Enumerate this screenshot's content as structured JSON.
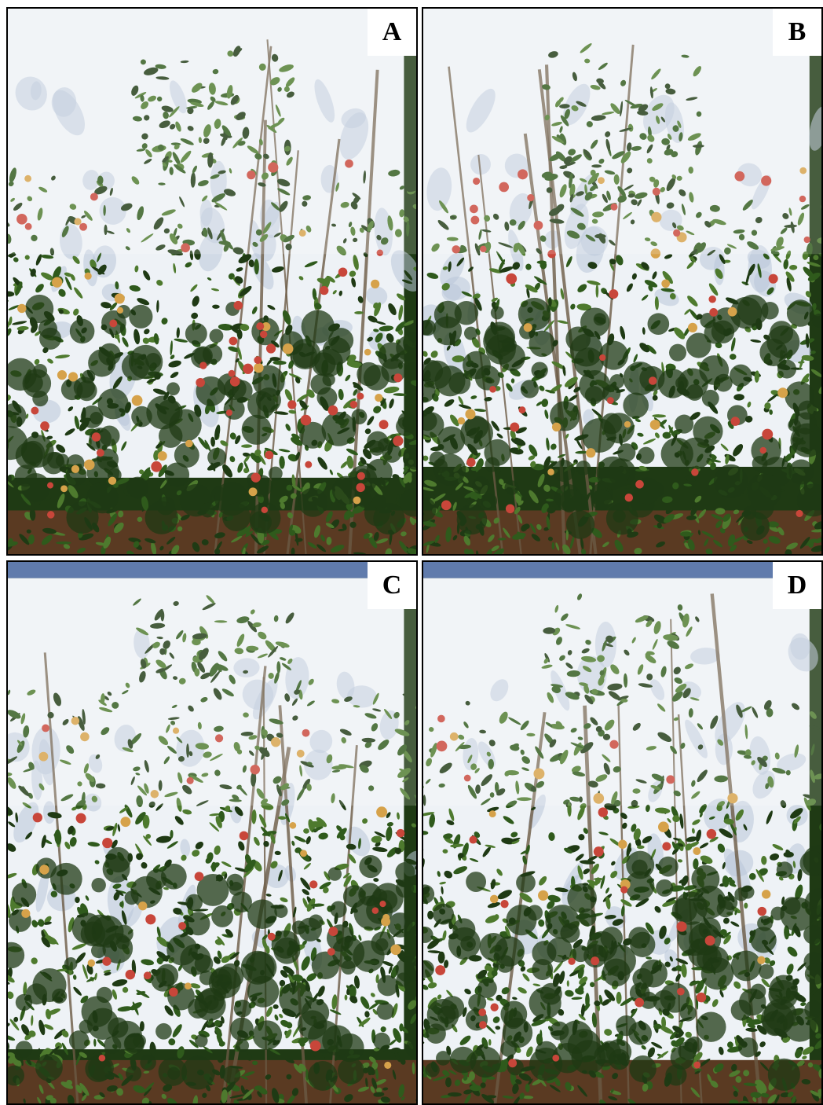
{
  "panels": [
    {
      "id": "a",
      "label": "A"
    },
    {
      "id": "b",
      "label": "B"
    },
    {
      "id": "c",
      "label": "C"
    },
    {
      "id": "d",
      "label": "D"
    }
  ],
  "colors": {
    "sheet": "#eef2f6",
    "sheet_shadow": "#b9c6d8",
    "sky": "#3d5f9a",
    "foliage_dark": "#1f3a14",
    "foliage_mid": "#2f5a1c",
    "foliage_light": "#4e7a2e",
    "soil": "#5a3a22",
    "apple_red": "#c8463a",
    "apple_yellow": "#d6a24a",
    "trunk": "#6b5a44"
  }
}
